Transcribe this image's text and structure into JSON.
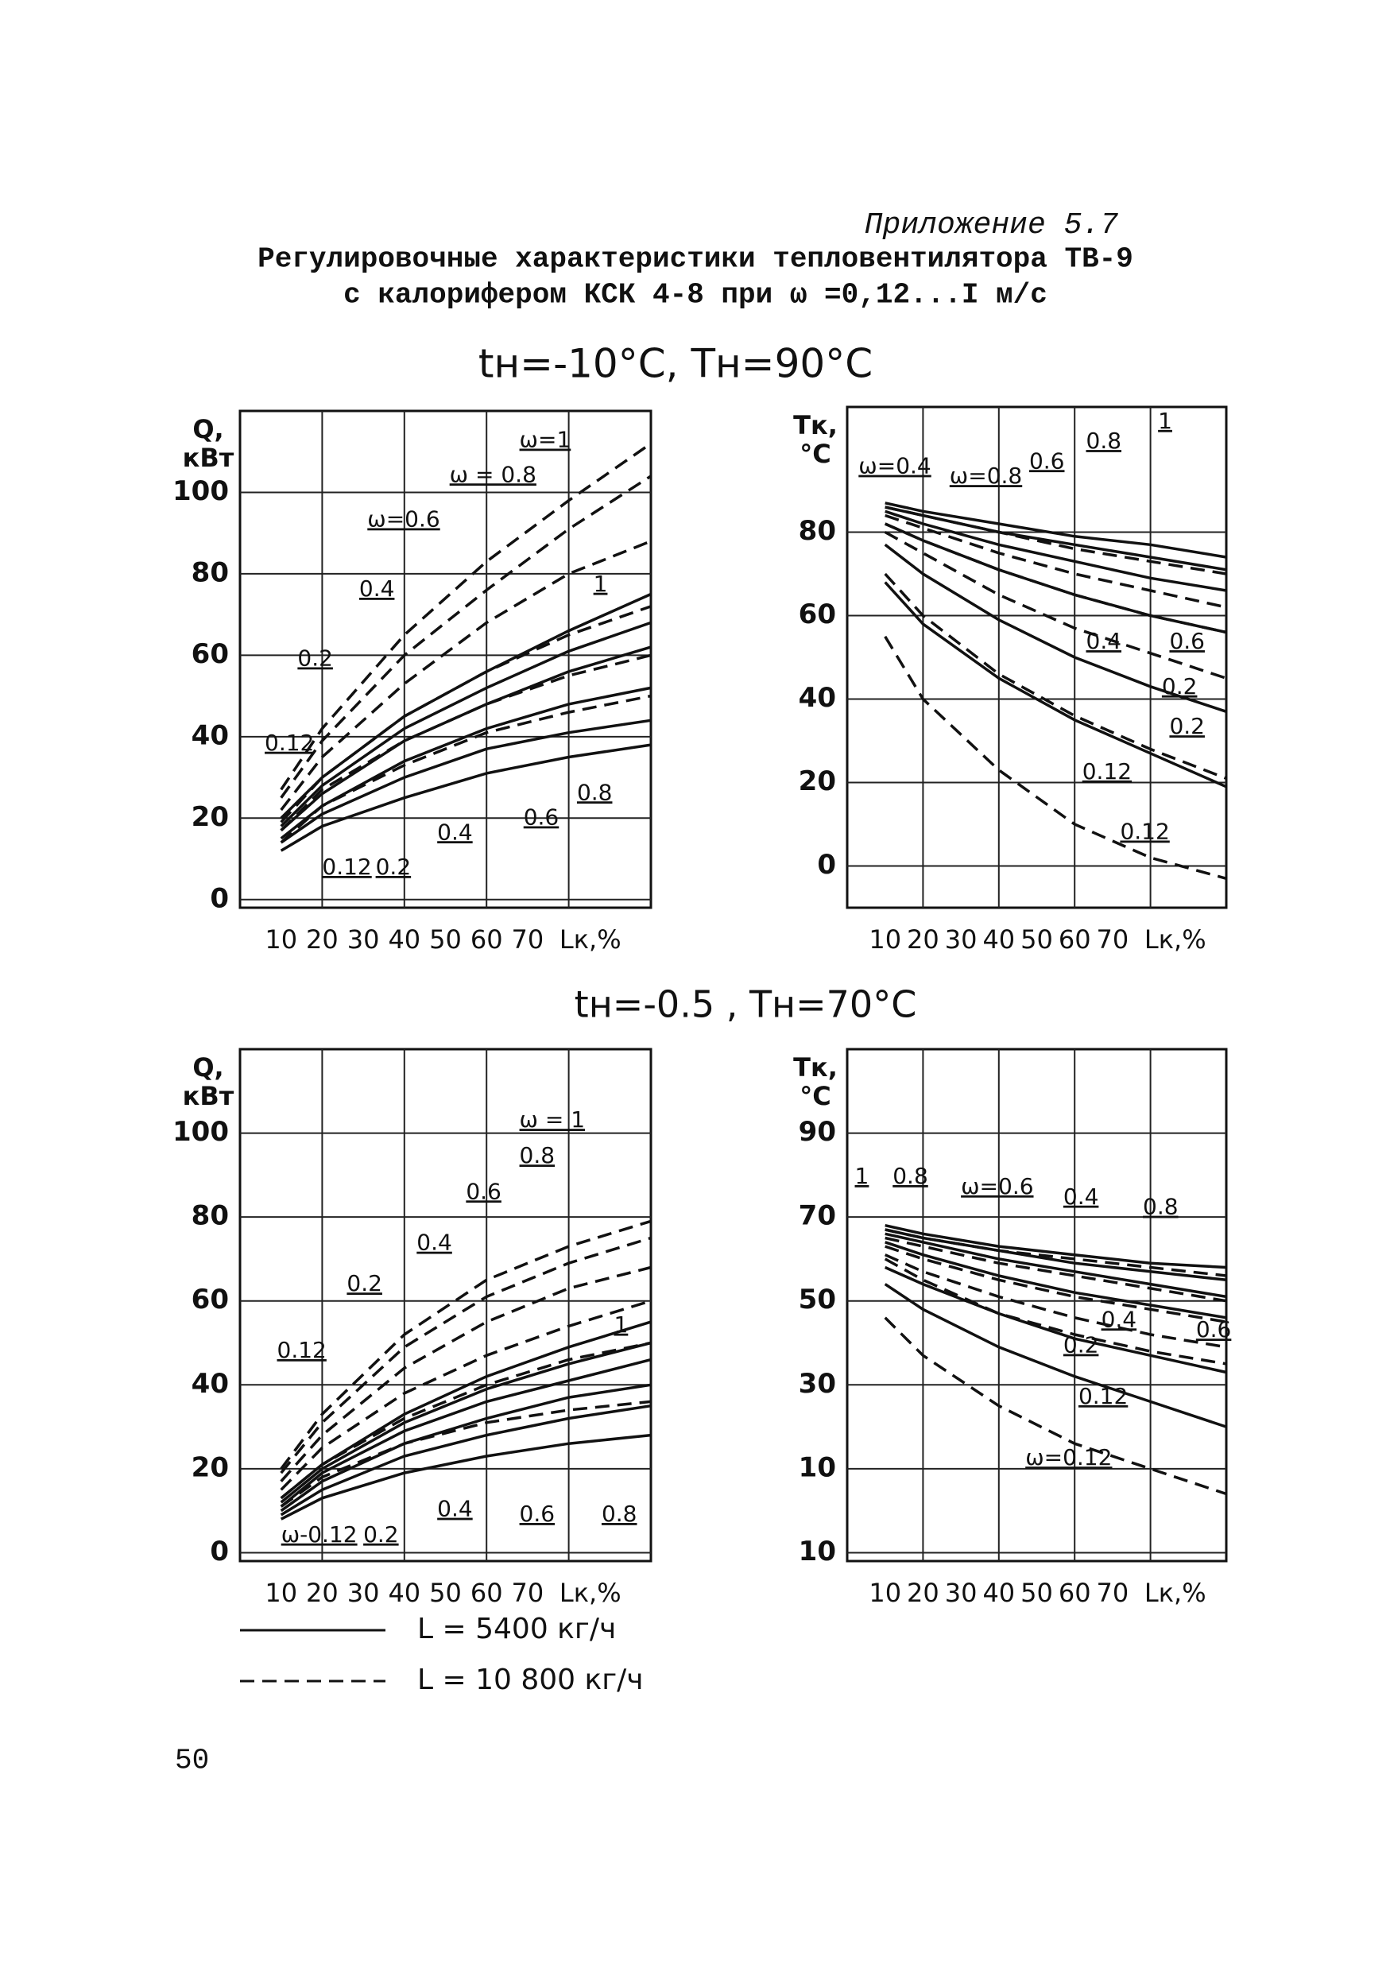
{
  "header": {
    "appendix": "Приложение 5.7",
    "title_lines": [
      "Регулировочные характеристики тепловентилятора ТВ-9",
      "с калорифером КСК 4-8 при ω =0,12...I м/с"
    ]
  },
  "sections": [
    "tн=-10°C,  Tн=90°C",
    "tн=-0.5 , Tн=70°C"
  ],
  "legend": [
    {
      "style": "solid",
      "label": "L = 5400 кг/ч"
    },
    {
      "style": "dashed",
      "label": "L = 10 800 кг/ч"
    }
  ],
  "page_number": "50",
  "chart_data": [
    {
      "type": "line",
      "ylabel": [
        "Q,",
        "кВт"
      ],
      "xlabel": "Lк,%",
      "grid": true,
      "color": "#111",
      "xlim": [
        0,
        100
      ],
      "ylim": [
        -2,
        120
      ],
      "xticks": [
        10,
        20,
        30,
        40,
        50,
        60,
        70
      ],
      "xgrid": [
        20,
        40,
        60,
        80
      ],
      "yticks": [
        0,
        20,
        40,
        60,
        80,
        100
      ],
      "x": [
        10,
        20,
        40,
        60,
        80,
        100
      ],
      "series": [
        {
          "style": "dashed",
          "values": [
            27,
            42,
            65,
            83,
            98,
            112
          ]
        },
        {
          "style": "dashed",
          "values": [
            25,
            39,
            60,
            76,
            91,
            104
          ]
        },
        {
          "style": "dashed",
          "values": [
            22,
            35,
            53,
            68,
            80,
            88
          ]
        },
        {
          "style": "dashed",
          "values": [
            19,
            30,
            45,
            56,
            65,
            72
          ]
        },
        {
          "style": "dashed",
          "values": [
            17,
            27,
            39,
            48,
            55,
            60
          ]
        },
        {
          "style": "dashed",
          "values": [
            14,
            23,
            33,
            41,
            46,
            50
          ]
        },
        {
          "style": "solid",
          "values": [
            20,
            30,
            45,
            56,
            66,
            75
          ]
        },
        {
          "style": "solid",
          "values": [
            18,
            28,
            42,
            52,
            61,
            68
          ]
        },
        {
          "style": "solid",
          "values": [
            17,
            26,
            39,
            48,
            56,
            62
          ]
        },
        {
          "style": "solid",
          "values": [
            15,
            23,
            34,
            42,
            48,
            52
          ]
        },
        {
          "style": "solid",
          "values": [
            14,
            21,
            30,
            37,
            41,
            44
          ]
        },
        {
          "style": "solid",
          "values": [
            12,
            18,
            25,
            31,
            35,
            38
          ]
        }
      ],
      "annotations": [
        "ω=1",
        "ω = 0.8",
        "ω=0.6",
        "0.4",
        "0.2",
        "0.12",
        "1",
        "0.8",
        "0.6",
        "0.4",
        "0.12",
        "0.2"
      ]
    },
    {
      "type": "line",
      "ylabel": [
        "Tк,",
        "°C"
      ],
      "xlabel": "Lк,%",
      "grid": true,
      "color": "#111",
      "xlim": [
        0,
        100
      ],
      "ylim": [
        -10,
        110
      ],
      "xticks": [
        10,
        20,
        30,
        40,
        50,
        60,
        70
      ],
      "xgrid": [
        20,
        40,
        60,
        80
      ],
      "yticks": [
        0,
        20,
        40,
        60,
        80
      ],
      "x": [
        10,
        20,
        40,
        60,
        80,
        100
      ],
      "series": [
        {
          "style": "solid",
          "values": [
            87,
            85,
            82,
            79,
            77,
            74
          ]
        },
        {
          "style": "solid",
          "values": [
            86,
            84,
            80,
            77,
            74,
            71
          ]
        },
        {
          "style": "solid",
          "values": [
            85,
            82,
            77,
            73,
            69,
            66
          ]
        },
        {
          "style": "solid",
          "values": [
            82,
            78,
            71,
            65,
            60,
            56
          ]
        },
        {
          "style": "solid",
          "values": [
            77,
            70,
            59,
            50,
            43,
            37
          ]
        },
        {
          "style": "solid",
          "values": [
            68,
            58,
            45,
            35,
            27,
            19
          ]
        },
        {
          "style": "dashed",
          "values": [
            86,
            84,
            80,
            76,
            73,
            70
          ]
        },
        {
          "style": "dashed",
          "values": [
            84,
            81,
            75,
            70,
            66,
            62
          ]
        },
        {
          "style": "dashed",
          "values": [
            82,
            78,
            71,
            65,
            60,
            56
          ]
        },
        {
          "style": "dashed",
          "values": [
            80,
            75,
            65,
            57,
            51,
            45
          ]
        },
        {
          "style": "dashed",
          "values": [
            70,
            60,
            46,
            36,
            28,
            21
          ]
        },
        {
          "style": "dashed",
          "values": [
            55,
            40,
            23,
            10,
            2,
            -3
          ]
        }
      ],
      "annotations": [
        "ω=0.4",
        "ω=0.8",
        "0.6",
        "0.8",
        "1",
        "0.4",
        "0.6",
        "0.2",
        "0.2",
        "0.12",
        "0.12"
      ]
    },
    {
      "type": "line",
      "ylabel": [
        "Q,",
        "кВт"
      ],
      "xlabel": "Lк,%",
      "grid": true,
      "color": "#111",
      "xlim": [
        0,
        100
      ],
      "ylim": [
        -2,
        120
      ],
      "xticks": [
        10,
        20,
        30,
        40,
        50,
        60,
        70
      ],
      "xgrid": [
        20,
        40,
        60,
        80
      ],
      "yticks": [
        0,
        20,
        40,
        60,
        80,
        100
      ],
      "x": [
        10,
        20,
        40,
        60,
        80,
        100
      ],
      "series": [
        {
          "style": "dashed",
          "values": [
            20,
            33,
            52,
            65,
            73,
            79
          ]
        },
        {
          "style": "dashed",
          "values": [
            19,
            31,
            49,
            61,
            69,
            75
          ]
        },
        {
          "style": "dashed",
          "values": [
            17,
            28,
            44,
            55,
            63,
            68
          ]
        },
        {
          "style": "dashed",
          "values": [
            15,
            25,
            38,
            47,
            54,
            60
          ]
        },
        {
          "style": "dashed",
          "values": [
            13,
            21,
            32,
            40,
            46,
            50
          ]
        },
        {
          "style": "dashed",
          "values": [
            11,
            18,
            26,
            31,
            34,
            36
          ]
        },
        {
          "style": "solid",
          "values": [
            13,
            21,
            33,
            42,
            49,
            55
          ]
        },
        {
          "style": "solid",
          "values": [
            12,
            20,
            31,
            39,
            45,
            50
          ]
        },
        {
          "style": "solid",
          "values": [
            11,
            19,
            29,
            36,
            41,
            46
          ]
        },
        {
          "style": "solid",
          "values": [
            10,
            17,
            26,
            32,
            37,
            40
          ]
        },
        {
          "style": "solid",
          "values": [
            9,
            15,
            23,
            28,
            32,
            35
          ]
        },
        {
          "style": "solid",
          "values": [
            8,
            13,
            19,
            23,
            26,
            28
          ]
        }
      ],
      "annotations": [
        "ω = 1",
        "0.8",
        "0.6",
        "0.4",
        "0.2",
        "0.12",
        "1",
        "0.4",
        "0.6",
        "0.8",
        "ω-0.12",
        "0.2"
      ]
    },
    {
      "type": "line",
      "ylabel": [
        "Tк,",
        "°C"
      ],
      "xlabel": "Lк,%",
      "grid": true,
      "color": "#111",
      "xlim": [
        0,
        100
      ],
      "ylim": [
        -12,
        110
      ],
      "xticks": [
        10,
        20,
        30,
        40,
        50,
        60,
        70
      ],
      "xgrid": [
        20,
        40,
        60,
        80
      ],
      "yticks": [
        90,
        70,
        50,
        30,
        10,
        {
          "value": -10,
          "label": "10"
        }
      ],
      "x": [
        10,
        20,
        40,
        60,
        80,
        100
      ],
      "series": [
        {
          "style": "solid",
          "values": [
            68,
            66,
            63,
            61,
            59,
            58
          ]
        },
        {
          "style": "solid",
          "values": [
            67,
            65,
            62,
            59,
            57,
            55
          ]
        },
        {
          "style": "solid",
          "values": [
            66,
            64,
            60,
            57,
            54,
            51
          ]
        },
        {
          "style": "solid",
          "values": [
            64,
            61,
            56,
            52,
            49,
            46
          ]
        },
        {
          "style": "solid",
          "values": [
            58,
            54,
            47,
            41,
            37,
            33
          ]
        },
        {
          "style": "solid",
          "values": [
            54,
            48,
            39,
            32,
            26,
            20
          ]
        },
        {
          "style": "dashed",
          "values": [
            67,
            65,
            62,
            60,
            58,
            56
          ]
        },
        {
          "style": "dashed",
          "values": [
            65,
            63,
            59,
            56,
            53,
            50
          ]
        },
        {
          "style": "dashed",
          "values": [
            63,
            60,
            55,
            51,
            48,
            45
          ]
        },
        {
          "style": "dashed",
          "values": [
            61,
            57,
            51,
            46,
            42,
            39
          ]
        },
        {
          "style": "dashed",
          "values": [
            60,
            55,
            47,
            42,
            38,
            35
          ]
        },
        {
          "style": "dashed",
          "values": [
            46,
            37,
            25,
            16,
            10,
            4
          ]
        }
      ],
      "annotations": [
        "1",
        "0.8",
        "ω=0.6",
        "0.4",
        "0.8",
        "0.4",
        "0.6",
        "0.2",
        "0.12",
        "ω=0.12"
      ]
    }
  ]
}
